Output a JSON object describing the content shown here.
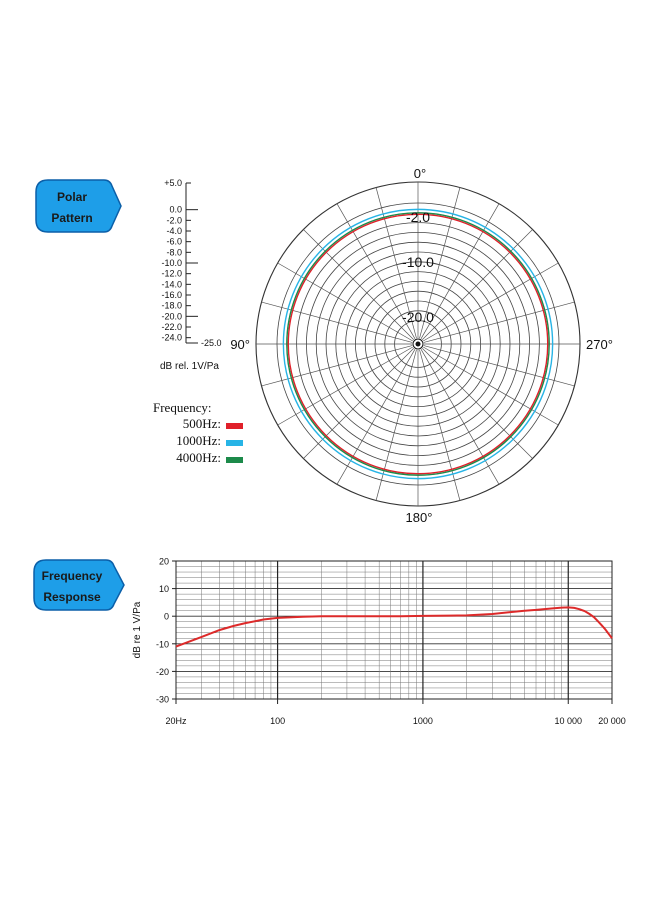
{
  "badges": {
    "polar": [
      "Polar",
      "Pattern"
    ],
    "frequency": [
      "Frequency",
      "Response"
    ]
  },
  "colors": {
    "badge_fill": "#1e9ee8",
    "badge_stroke": "#0b5fa8",
    "series_500": "#e0202a",
    "series_1000": "#27b4e6",
    "series_4000": "#1c8a4a",
    "grid": "#444444",
    "response_line": "#dd2a2a"
  },
  "chart_data": [
    {
      "type": "polar",
      "angle_labels": [
        "0°",
        "90°",
        "180°",
        "270°"
      ],
      "ring_labels": [
        "-2.0",
        "-10.0",
        "-20.0"
      ],
      "scale": {
        "ticks": [
          "+5.0",
          "0.0",
          "-2.0",
          "-4.0",
          "-6.0",
          "-8.0",
          "-10.0",
          "-12.0",
          "-14.0",
          "-16.0",
          "-18.0",
          "-20.0",
          "-22.0",
          "-24.0",
          "-25.0"
        ],
        "tick_values": [
          5,
          0,
          -2,
          -4,
          -6,
          -8,
          -10,
          -12,
          -14,
          -16,
          -18,
          -20,
          -22,
          -24,
          -25
        ],
        "range": [
          -25,
          5
        ],
        "unit_label": "dB rel. 1V/Pa"
      },
      "grid": {
        "spoke_step_deg": 15,
        "ring_values": [
          0,
          -2,
          -4,
          -6,
          -8,
          -10,
          -12,
          -14,
          -16,
          -18,
          -20,
          -22,
          -24
        ],
        "outer_value": 5
      },
      "legend_title": "Frequency:",
      "series": [
        {
          "name": "500Hz:",
          "level_db": -2.3
        },
        {
          "name": "1000Hz:",
          "level_db": -1.3
        },
        {
          "name": "4000Hz:",
          "level_db": -2.0
        }
      ]
    },
    {
      "type": "line",
      "ylabel": "dB re 1 V/Pa",
      "xscale": "log",
      "xlim": [
        20,
        20000
      ],
      "ylim": [
        -30,
        20
      ],
      "x_tick_labels": [
        {
          "value": 20,
          "label": "20Hz"
        },
        {
          "value": 100,
          "label": "100"
        },
        {
          "value": 1000,
          "label": "1000"
        },
        {
          "value": 10000,
          "label": "10 000"
        },
        {
          "value": 20000,
          "label": "20 000"
        }
      ],
      "y_ticks": [
        20,
        10,
        0,
        -10,
        -20,
        -30
      ],
      "y_tick_labels": [
        "20",
        "10",
        "0",
        "-10",
        "-20",
        "-30"
      ],
      "grid": true,
      "series": [
        {
          "x": [
            20,
            30,
            40,
            50,
            60,
            70,
            80,
            100,
            150,
            200,
            300,
            500,
            700,
            1000,
            1500,
            2000,
            3000,
            4000,
            5000,
            6000,
            7000,
            8000,
            9000,
            10000,
            11000,
            12000,
            13000,
            14000,
            15000,
            16000,
            17000,
            18000,
            20000
          ],
          "y": [
            -11,
            -7.5,
            -5,
            -3.5,
            -2.5,
            -1.8,
            -1.2,
            -0.6,
            -0.2,
            0,
            0,
            0,
            0,
            0.1,
            0.2,
            0.3,
            0.8,
            1.5,
            2.0,
            2.3,
            2.6,
            2.9,
            3.1,
            3.2,
            3.0,
            2.5,
            1.8,
            0.8,
            -0.3,
            -1.8,
            -3.3,
            -4.8,
            -8
          ]
        }
      ]
    }
  ]
}
